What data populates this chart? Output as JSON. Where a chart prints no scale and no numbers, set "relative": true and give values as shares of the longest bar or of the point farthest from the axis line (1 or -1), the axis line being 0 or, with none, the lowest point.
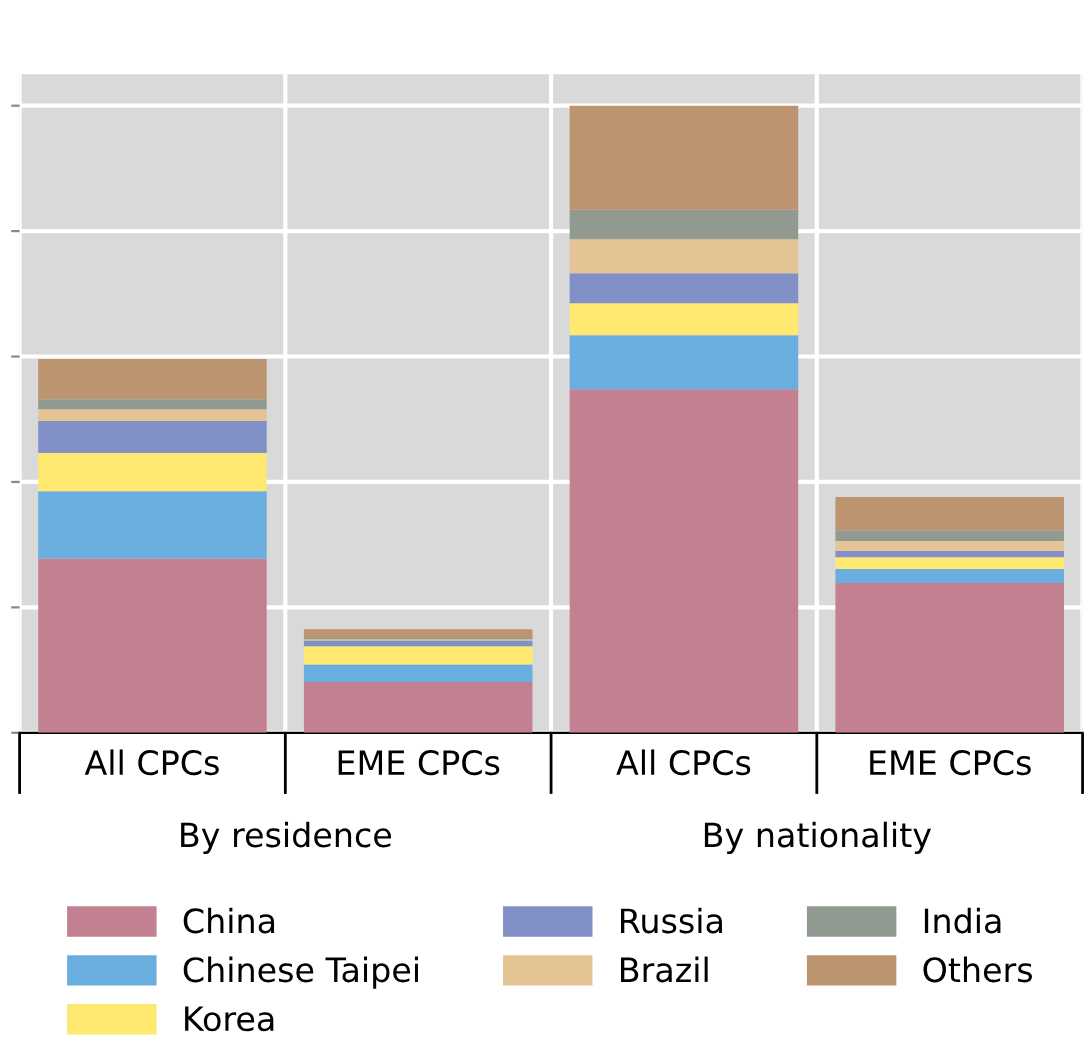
{
  "chart_data": {
    "type": "bar",
    "stacked": true,
    "relative": true,
    "categories": [
      "All CPCs",
      "EME CPCs",
      "All CPCs",
      "EME CPCs"
    ],
    "annotations": [
      "By residence",
      "By nationality"
    ],
    "series": [
      {
        "name": "China",
        "color": "#c28090",
        "values": [
          0.278,
          0.081,
          0.548,
          0.239
        ]
      },
      {
        "name": "Chinese Taipei",
        "color": "#6aaee0",
        "values": [
          0.107,
          0.028,
          0.086,
          0.022
        ]
      },
      {
        "name": "Korea",
        "color": "#fee870",
        "values": [
          0.061,
          0.029,
          0.051,
          0.019
        ]
      },
      {
        "name": "Russia",
        "color": "#8290c8",
        "values": [
          0.051,
          0.009,
          0.048,
          0.01
        ]
      },
      {
        "name": "Brazil",
        "color": "#e4c494",
        "values": [
          0.019,
          0.002,
          0.054,
          0.016
        ]
      },
      {
        "name": "India",
        "color": "#919a90",
        "values": [
          0.016,
          0.002,
          0.047,
          0.017
        ]
      },
      {
        "name": "Others",
        "color": "#bc9470",
        "values": [
          0.064,
          0.014,
          0.166,
          0.053
        ]
      }
    ],
    "grid": true,
    "legend": "bottom"
  }
}
